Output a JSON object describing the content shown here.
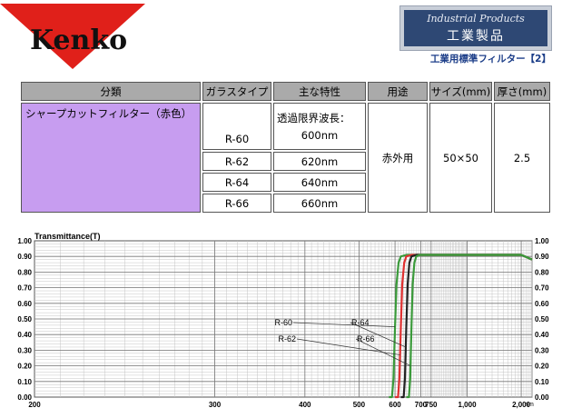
{
  "header": {
    "logo_text": "Kenko",
    "badge_en": "Industrial Products",
    "badge_jp": "工業製品",
    "subtitle": "工業用標準フィルター【2】"
  },
  "table": {
    "headers": [
      "分類",
      "ガラスタイプ",
      "主な特性",
      "用途",
      "サイズ(mm)",
      "厚さ(mm)"
    ],
    "category": "シャープカットフィルター（赤色）",
    "characteristic_label": "透過限界波長：",
    "rows": [
      {
        "type": "R-60",
        "wavelength": "600nm"
      },
      {
        "type": "R-62",
        "wavelength": "620nm"
      },
      {
        "type": "R-64",
        "wavelength": "640nm"
      },
      {
        "type": "R-66",
        "wavelength": "660nm"
      }
    ],
    "usage": "赤外用",
    "size": "50×50",
    "thickness": "2.5"
  },
  "chart_data": {
    "type": "line",
    "ylabel": "Transmittance(T)",
    "xunit": "nm",
    "xscale": "reciprocal",
    "xlim": [
      200,
      2500
    ],
    "ylim": [
      0,
      1.0
    ],
    "grid": true,
    "x_ticks": [
      "200",
      "300",
      "400",
      "500",
      "600",
      "700",
      "750",
      "1,000",
      "2,000"
    ],
    "y_ticks": [
      "0.00",
      "0.10",
      "0.20",
      "0.30",
      "0.40",
      "0.50",
      "0.60",
      "0.70",
      "0.80",
      "0.90",
      "1.00"
    ],
    "series": [
      {
        "name": "R-60",
        "color": "#3a9a3a",
        "x": [
          580,
          590,
          595,
          600,
          605,
          612,
          620,
          640,
          700,
          1000,
          1500,
          2000,
          2500
        ],
        "y": [
          0,
          0,
          0.12,
          0.45,
          0.72,
          0.86,
          0.9,
          0.91,
          0.91,
          0.91,
          0.91,
          0.91,
          0.88
        ]
      },
      {
        "name": "R-62",
        "color": "#e03030",
        "x": [
          600,
          610,
          615,
          620,
          625,
          632,
          640,
          660,
          700,
          1000,
          1500,
          2000,
          2500
        ],
        "y": [
          0,
          0,
          0.12,
          0.45,
          0.72,
          0.86,
          0.9,
          0.91,
          0.91,
          0.91,
          0.91,
          0.91,
          0.88
        ]
      },
      {
        "name": "R-64",
        "color": "#222222",
        "x": [
          620,
          630,
          635,
          640,
          645,
          652,
          660,
          680,
          700,
          1000,
          1500,
          2000,
          2500
        ],
        "y": [
          0,
          0,
          0.12,
          0.45,
          0.72,
          0.86,
          0.9,
          0.91,
          0.91,
          0.91,
          0.91,
          0.91,
          0.88
        ]
      },
      {
        "name": "R-66",
        "color": "#3a9a3a",
        "x": [
          640,
          650,
          655,
          660,
          665,
          672,
          680,
          695,
          700,
          1000,
          1500,
          2000,
          2500
        ],
        "y": [
          0,
          0,
          0.12,
          0.45,
          0.72,
          0.86,
          0.9,
          0.91,
          0.91,
          0.91,
          0.91,
          0.91,
          0.88
        ]
      }
    ],
    "annotations": [
      "R-60",
      "R-62",
      "R-64",
      "R-66"
    ]
  }
}
